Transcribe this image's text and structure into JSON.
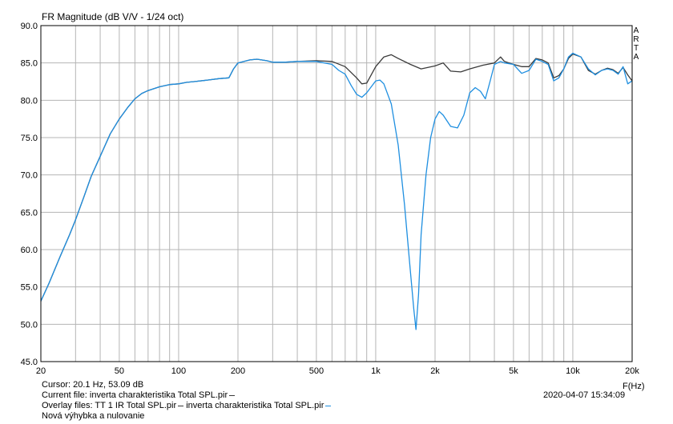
{
  "header": {
    "title": "FR Magnitude (dB V/V - 1/24 oct)",
    "brand_letters": [
      "A",
      "R",
      "T",
      "A"
    ]
  },
  "footer": {
    "cursor": "Cursor: 20.1 Hz, 53.09 dB",
    "current_file": "Current file: inverta charakteristika Total SPL.pir",
    "overlay_files_prefix": "Overlay files: TT 1 IR Total SPL.pir",
    "overlay_files_second": "inverta charakteristika Total SPL.pir",
    "note": "Nová výhybka a nulovanie",
    "timestamp": "2020-04-07  15:34:09",
    "x_unit": "F(Hz)"
  },
  "colors": {
    "background": "#ffffff",
    "grid": "#b4b4b4",
    "frame": "#000000",
    "series_black": "#3a3a3a",
    "series_blue": "#1f8fe0"
  },
  "chart_data": {
    "type": "line",
    "title": "FR Magnitude (dB V/V - 1/24 oct)",
    "xlabel": "F(Hz)",
    "ylabel": "",
    "x_scale": "log",
    "xlim": [
      20,
      20000
    ],
    "ylim": [
      45,
      90
    ],
    "x_ticks": [
      20,
      50,
      100,
      200,
      500,
      1000,
      2000,
      5000,
      10000,
      20000
    ],
    "x_tick_labels": [
      "20",
      "50",
      "100",
      "200",
      "500",
      "1k",
      "2k",
      "5k",
      "10k",
      "20k"
    ],
    "y_ticks": [
      45,
      50,
      55,
      60,
      65,
      70,
      75,
      80,
      85,
      90
    ],
    "y_tick_labels": [
      "45.0",
      "50.0",
      "55.0",
      "60.0",
      "65.0",
      "70.0",
      "75.0",
      "80.0",
      "85.0",
      "90.0"
    ],
    "grid": true,
    "series": [
      {
        "color": "#3a3a3a",
        "points": [
          [
            20,
            53.1
          ],
          [
            22,
            55.5
          ],
          [
            25,
            59.0
          ],
          [
            28,
            62.0
          ],
          [
            30,
            64.0
          ],
          [
            33,
            67.0
          ],
          [
            36,
            69.8
          ],
          [
            40,
            72.5
          ],
          [
            45,
            75.5
          ],
          [
            50,
            77.5
          ],
          [
            55,
            79.0
          ],
          [
            60,
            80.2
          ],
          [
            65,
            80.9
          ],
          [
            70,
            81.3
          ],
          [
            80,
            81.8
          ],
          [
            90,
            82.1
          ],
          [
            100,
            82.2
          ],
          [
            110,
            82.4
          ],
          [
            120,
            82.5
          ],
          [
            140,
            82.7
          ],
          [
            160,
            82.9
          ],
          [
            180,
            83.0
          ],
          [
            190,
            84.2
          ],
          [
            200,
            85.0
          ],
          [
            230,
            85.4
          ],
          [
            250,
            85.5
          ],
          [
            280,
            85.3
          ],
          [
            300,
            85.1
          ],
          [
            350,
            85.1
          ],
          [
            400,
            85.2
          ],
          [
            500,
            85.3
          ],
          [
            600,
            85.2
          ],
          [
            700,
            84.5
          ],
          [
            800,
            83.0
          ],
          [
            850,
            82.2
          ],
          [
            900,
            82.3
          ],
          [
            1000,
            84.5
          ],
          [
            1100,
            85.8
          ],
          [
            1200,
            86.1
          ],
          [
            1300,
            85.6
          ],
          [
            1500,
            84.8
          ],
          [
            1700,
            84.2
          ],
          [
            2000,
            84.6
          ],
          [
            2200,
            85.0
          ],
          [
            2400,
            83.9
          ],
          [
            2700,
            83.8
          ],
          [
            3000,
            84.2
          ],
          [
            3500,
            84.7
          ],
          [
            4000,
            85.0
          ],
          [
            4300,
            85.8
          ],
          [
            4500,
            85.2
          ],
          [
            5000,
            84.8
          ],
          [
            5500,
            84.5
          ],
          [
            6000,
            84.5
          ],
          [
            6500,
            85.6
          ],
          [
            7000,
            85.4
          ],
          [
            7500,
            85.0
          ],
          [
            8000,
            83.0
          ],
          [
            8500,
            83.3
          ],
          [
            9000,
            84.2
          ],
          [
            9500,
            85.6
          ],
          [
            10000,
            86.2
          ],
          [
            11000,
            85.8
          ],
          [
            12000,
            84.0
          ],
          [
            13000,
            83.5
          ],
          [
            14000,
            84.0
          ],
          [
            15000,
            84.3
          ],
          [
            16000,
            84.1
          ],
          [
            17000,
            83.6
          ],
          [
            18000,
            84.4
          ],
          [
            19000,
            83.4
          ],
          [
            20000,
            82.6
          ]
        ]
      },
      {
        "color": "#1f8fe0",
        "points": [
          [
            20,
            53.1
          ],
          [
            22,
            55.5
          ],
          [
            25,
            59.0
          ],
          [
            28,
            62.0
          ],
          [
            30,
            64.0
          ],
          [
            33,
            67.0
          ],
          [
            36,
            69.8
          ],
          [
            40,
            72.5
          ],
          [
            45,
            75.5
          ],
          [
            50,
            77.5
          ],
          [
            55,
            79.0
          ],
          [
            60,
            80.2
          ],
          [
            65,
            80.9
          ],
          [
            70,
            81.3
          ],
          [
            80,
            81.8
          ],
          [
            90,
            82.1
          ],
          [
            100,
            82.2
          ],
          [
            110,
            82.4
          ],
          [
            120,
            82.5
          ],
          [
            140,
            82.7
          ],
          [
            160,
            82.9
          ],
          [
            180,
            83.0
          ],
          [
            190,
            84.2
          ],
          [
            200,
            85.0
          ],
          [
            230,
            85.4
          ],
          [
            250,
            85.5
          ],
          [
            280,
            85.3
          ],
          [
            300,
            85.1
          ],
          [
            350,
            85.1
          ],
          [
            400,
            85.2
          ],
          [
            500,
            85.2
          ],
          [
            600,
            84.8
          ],
          [
            650,
            84.0
          ],
          [
            700,
            83.5
          ],
          [
            750,
            82.0
          ],
          [
            800,
            80.8
          ],
          [
            850,
            80.4
          ],
          [
            900,
            81.0
          ],
          [
            1000,
            82.6
          ],
          [
            1050,
            82.7
          ],
          [
            1100,
            82.2
          ],
          [
            1200,
            79.5
          ],
          [
            1300,
            74.0
          ],
          [
            1400,
            66.0
          ],
          [
            1500,
            57.0
          ],
          [
            1560,
            52.0
          ],
          [
            1600,
            49.3
          ],
          [
            1650,
            54.0
          ],
          [
            1700,
            62.0
          ],
          [
            1800,
            70.0
          ],
          [
            1900,
            75.0
          ],
          [
            2000,
            77.5
          ],
          [
            2100,
            78.5
          ],
          [
            2200,
            78.0
          ],
          [
            2400,
            76.5
          ],
          [
            2600,
            76.3
          ],
          [
            2800,
            78.0
          ],
          [
            3000,
            81.0
          ],
          [
            3200,
            81.7
          ],
          [
            3400,
            81.2
          ],
          [
            3600,
            80.2
          ],
          [
            3800,
            82.5
          ],
          [
            4000,
            84.8
          ],
          [
            4300,
            85.2
          ],
          [
            4500,
            85.0
          ],
          [
            5000,
            84.8
          ],
          [
            5500,
            83.6
          ],
          [
            6000,
            84.0
          ],
          [
            6500,
            85.5
          ],
          [
            7000,
            85.2
          ],
          [
            7500,
            84.8
          ],
          [
            8000,
            82.6
          ],
          [
            8500,
            83.0
          ],
          [
            9000,
            84.2
          ],
          [
            9500,
            85.8
          ],
          [
            10000,
            86.3
          ],
          [
            11000,
            85.8
          ],
          [
            12000,
            84.2
          ],
          [
            13000,
            83.4
          ],
          [
            14000,
            84.0
          ],
          [
            15000,
            84.2
          ],
          [
            16000,
            84.0
          ],
          [
            17000,
            83.5
          ],
          [
            18000,
            84.5
          ],
          [
            19000,
            82.2
          ],
          [
            20000,
            82.6
          ]
        ]
      }
    ]
  }
}
